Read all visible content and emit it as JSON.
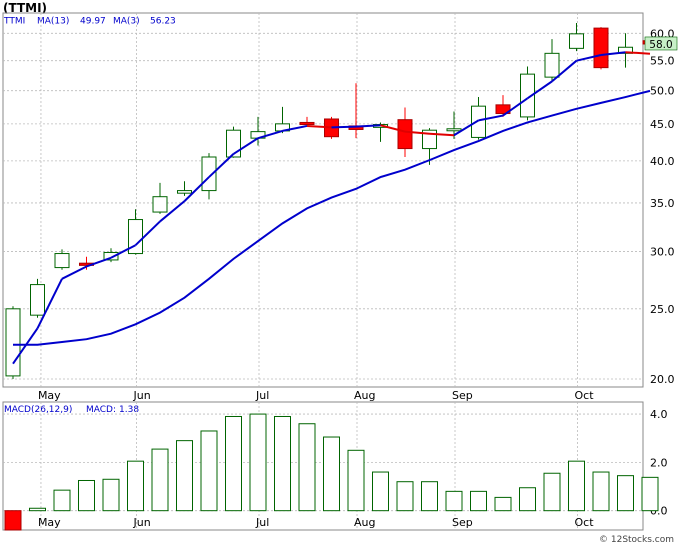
{
  "header": {
    "ticker_label": "(TTMI)",
    "legend_ticker": "TTMI",
    "legend_ma13_label": "MA(13)",
    "legend_ma13_value": "49.97",
    "legend_ma3_label": "MA(3)",
    "legend_ma3_value": "56.23"
  },
  "macd_header": {
    "label": "MACD(26,12,9)",
    "macd_label": "MACD:",
    "macd_value": "1.38"
  },
  "watermark": "© 12Stocks.com",
  "colors": {
    "up": "#006400",
    "down": "#ff0000",
    "ma13": "#0000cc",
    "ma3": "#e00000",
    "grid": "#bbbbbb",
    "price_label_bg": "#c8f0c8"
  },
  "chart_data": [
    {
      "type": "candlestick",
      "title": "TTMI",
      "y_scale": "log",
      "ylim": [
        19.5,
        64
      ],
      "y_ticks": [
        "20.0",
        "25.0",
        "30.0",
        "35.0",
        "40.0",
        "45.0",
        "50.0",
        "55.0",
        "60.0"
      ],
      "y_tick_values": [
        20,
        25,
        30,
        35,
        40,
        45,
        50,
        55,
        60
      ],
      "x_tick_labels": [
        "May",
        "Jun",
        "Jul",
        "Aug",
        "Sep",
        "Oct"
      ],
      "x_tick_index": [
        1.1,
        5,
        10,
        14,
        18,
        23
      ],
      "last_price_label": "58.0",
      "last_price": 58.0,
      "candles": [
        {
          "o": 20.2,
          "h": 25.2,
          "l": 20.0,
          "c": 25.0
        },
        {
          "o": 24.5,
          "h": 27.5,
          "l": 24.3,
          "c": 27.0
        },
        {
          "o": 28.5,
          "h": 30.2,
          "l": 28.3,
          "c": 29.8
        },
        {
          "o": 28.9,
          "h": 29.5,
          "l": 28.3,
          "c": 28.7
        },
        {
          "o": 29.2,
          "h": 30.3,
          "l": 29.0,
          "c": 29.9
        },
        {
          "o": 29.8,
          "h": 34.3,
          "l": 29.7,
          "c": 33.2
        },
        {
          "o": 34.0,
          "h": 37.3,
          "l": 33.8,
          "c": 35.7
        },
        {
          "o": 36.1,
          "h": 37.5,
          "l": 35.8,
          "c": 36.4
        },
        {
          "o": 36.4,
          "h": 41.0,
          "l": 35.4,
          "c": 40.5
        },
        {
          "o": 40.5,
          "h": 44.6,
          "l": 40.4,
          "c": 44.1
        },
        {
          "o": 43.0,
          "h": 46.0,
          "l": 42.0,
          "c": 43.9
        },
        {
          "o": 44.0,
          "h": 47.5,
          "l": 43.7,
          "c": 45.0
        },
        {
          "o": 45.2,
          "h": 46.0,
          "l": 44.8,
          "c": 44.9
        },
        {
          "o": 45.7,
          "h": 46.0,
          "l": 42.9,
          "c": 43.2
        },
        {
          "o": 44.7,
          "h": 51.2,
          "l": 43.0,
          "c": 44.2
        },
        {
          "o": 44.5,
          "h": 45.2,
          "l": 42.5,
          "c": 44.9
        },
        {
          "o": 45.6,
          "h": 47.4,
          "l": 40.5,
          "c": 41.6
        },
        {
          "o": 41.6,
          "h": 44.4,
          "l": 39.5,
          "c": 44.1
        },
        {
          "o": 44.1,
          "h": 46.8,
          "l": 42.9,
          "c": 44.3
        },
        {
          "o": 43.1,
          "h": 49.0,
          "l": 42.8,
          "c": 47.6
        },
        {
          "o": 47.8,
          "h": 49.3,
          "l": 46.0,
          "c": 46.5
        },
        {
          "o": 46.0,
          "h": 54.0,
          "l": 45.5,
          "c": 52.7
        },
        {
          "o": 52.2,
          "h": 58.9,
          "l": 51.5,
          "c": 56.3
        },
        {
          "o": 57.2,
          "h": 62.0,
          "l": 56.7,
          "c": 59.9
        },
        {
          "o": 61.0,
          "h": 61.2,
          "l": 53.5,
          "c": 53.8
        },
        {
          "o": 56.3,
          "h": 60.0,
          "l": 53.8,
          "c": 57.4
        },
        {
          "o": 58.6,
          "h": 59.2,
          "l": 57.2,
          "c": 58.0
        }
      ],
      "series": [
        {
          "name": "MA(13)",
          "x": [
            0,
            1,
            2,
            3,
            4,
            5,
            6,
            7,
            8,
            9,
            10,
            11,
            12,
            13,
            14,
            15,
            16,
            17,
            18,
            19,
            20,
            21,
            22,
            23,
            24,
            25,
            26
          ],
          "values": [
            22.3,
            22.3,
            22.5,
            22.7,
            23.1,
            23.8,
            24.7,
            25.9,
            27.5,
            29.3,
            31.0,
            32.8,
            34.4,
            35.6,
            36.6,
            38.0,
            38.9,
            40.1,
            41.4,
            42.6,
            44.0,
            45.2,
            46.2,
            47.2,
            48.1,
            49.0,
            49.97
          ]
        },
        {
          "name": "MA(3)",
          "x": [
            0,
            1,
            2,
            3,
            4,
            5,
            6,
            7,
            8,
            9,
            10,
            11,
            12,
            13,
            14,
            15,
            16,
            17,
            18,
            19,
            20,
            21,
            22,
            23,
            24,
            25,
            26
          ],
          "values": [
            21.0,
            23.5,
            27.5,
            28.6,
            29.4,
            30.6,
            33.0,
            35.2,
            38.0,
            40.9,
            43.0,
            44.0,
            44.7,
            44.5,
            44.6,
            44.8,
            43.9,
            43.6,
            43.4,
            45.5,
            46.2,
            48.8,
            51.5,
            55.0,
            56.0,
            56.5,
            56.23
          ]
        }
      ]
    },
    {
      "type": "bar",
      "title": "MACD(26,12,9)",
      "ylim": [
        -0.8,
        4.5
      ],
      "y_ticks": [
        "0.0",
        "2.0",
        "4.0"
      ],
      "y_tick_values": [
        0,
        2,
        4
      ],
      "x_tick_labels": [
        "May",
        "Jun",
        "Jul",
        "Aug",
        "Sep",
        "Oct"
      ],
      "x_tick_index": [
        1.1,
        5,
        10,
        14,
        18,
        23
      ],
      "values": [
        -0.8,
        0.1,
        0.85,
        1.25,
        1.3,
        2.05,
        2.55,
        2.9,
        3.3,
        3.9,
        4.0,
        3.9,
        3.6,
        3.05,
        2.5,
        1.6,
        1.2,
        1.2,
        0.8,
        0.8,
        0.55,
        0.95,
        1.55,
        2.05,
        1.6,
        1.45,
        1.38
      ]
    }
  ]
}
